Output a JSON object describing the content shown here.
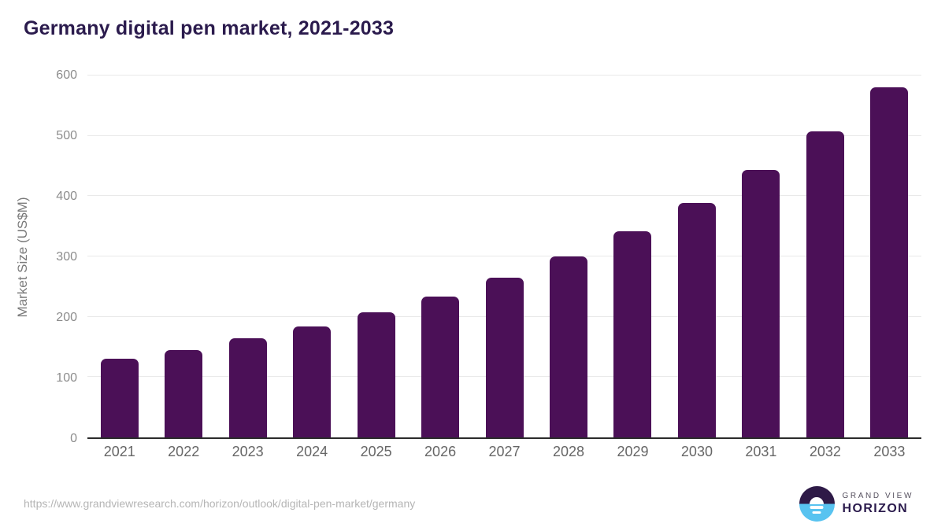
{
  "header": {
    "title": "Germany digital pen market, 2021-2033"
  },
  "chart_data": {
    "type": "bar",
    "title": "Germany digital pen market, 2021-2033",
    "categories": [
      "2021",
      "2022",
      "2023",
      "2024",
      "2025",
      "2026",
      "2027",
      "2028",
      "2029",
      "2030",
      "2031",
      "2032",
      "2033"
    ],
    "values": [
      130,
      145,
      164,
      184,
      207,
      234,
      265,
      300,
      342,
      389,
      443,
      507,
      581
    ],
    "xlabel": "",
    "ylabel": "Market Size (US$M)",
    "ylim": [
      0,
      600
    ],
    "yticks": [
      0,
      100,
      200,
      300,
      400,
      500,
      600
    ],
    "grid": "horizontal",
    "legend": "none",
    "bar_color": "#4b1057"
  },
  "footer": {
    "source_url": "https://www.grandviewresearch.com/horizon/outlook/digital-pen-market/germany",
    "brand_line1": "GRAND VIEW",
    "brand_line2": "HORIZON"
  },
  "colors": {
    "title": "#2b1b4d",
    "bar": "#4b1057",
    "gridline": "#e9e9e9",
    "axis_line": "#2b2b2b",
    "tick_label": "#8c8c8c",
    "x_label": "#666666",
    "url_text": "#b5b5b5",
    "logo_top_half": "#2e1a47",
    "logo_bottom_half": "#58c3f0"
  }
}
